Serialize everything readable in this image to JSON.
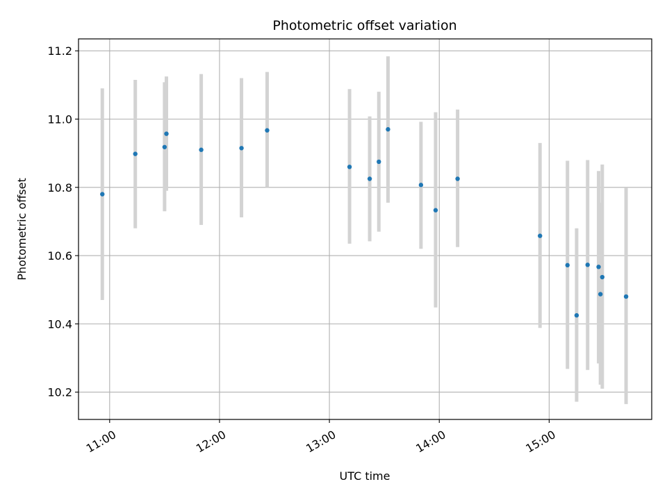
{
  "chart_data": {
    "type": "scatter",
    "title": "Photometric offset variation",
    "xlabel": "UTC time",
    "ylabel": "Photometric offset",
    "x_unit": "UTC clock time (hours)",
    "xlim": [
      "10:43",
      "15:56"
    ],
    "ylim": [
      10.12,
      11.235
    ],
    "grid": true,
    "xticks": [
      "11:00",
      "12:00",
      "13:00",
      "14:00",
      "15:00"
    ],
    "yticks": [
      "10.2",
      "10.4",
      "10.6",
      "10.8",
      "11.0",
      "11.2"
    ],
    "colors": {
      "point": "#1f77b4",
      "errorbar": "#d3d3d3",
      "grid": "#b0b0b0",
      "axes": "#000000"
    },
    "points": [
      {
        "x": "10:56",
        "y": 10.78,
        "ylow": 10.47,
        "yhigh": 11.09
      },
      {
        "x": "11:14",
        "y": 10.898,
        "ylow": 10.68,
        "yhigh": 11.115
      },
      {
        "x": "11:30",
        "y": 10.918,
        "ylow": 10.73,
        "yhigh": 11.108
      },
      {
        "x": "11:31",
        "y": 10.957,
        "ylow": 10.79,
        "yhigh": 11.125
      },
      {
        "x": "11:50",
        "y": 10.91,
        "ylow": 10.69,
        "yhigh": 11.132
      },
      {
        "x": "12:12",
        "y": 10.915,
        "ylow": 10.712,
        "yhigh": 11.12
      },
      {
        "x": "12:26",
        "y": 10.967,
        "ylow": 10.8,
        "yhigh": 11.138
      },
      {
        "x": "13:11",
        "y": 10.86,
        "ylow": 10.635,
        "yhigh": 11.088
      },
      {
        "x": "13:22",
        "y": 10.825,
        "ylow": 10.642,
        "yhigh": 11.008
      },
      {
        "x": "13:27",
        "y": 10.875,
        "ylow": 10.67,
        "yhigh": 11.08
      },
      {
        "x": "13:32",
        "y": 10.97,
        "ylow": 10.755,
        "yhigh": 11.184
      },
      {
        "x": "13:50",
        "y": 10.807,
        "ylow": 10.62,
        "yhigh": 10.992
      },
      {
        "x": "13:58",
        "y": 10.733,
        "ylow": 10.448,
        "yhigh": 11.02
      },
      {
        "x": "14:10",
        "y": 10.825,
        "ylow": 10.625,
        "yhigh": 11.028
      },
      {
        "x": "14:55",
        "y": 10.658,
        "ylow": 10.388,
        "yhigh": 10.93
      },
      {
        "x": "15:10",
        "y": 10.572,
        "ylow": 10.268,
        "yhigh": 10.878
      },
      {
        "x": "15:15",
        "y": 10.425,
        "ylow": 10.172,
        "yhigh": 10.68
      },
      {
        "x": "15:21",
        "y": 10.573,
        "ylow": 10.265,
        "yhigh": 10.88
      },
      {
        "x": "15:27",
        "y": 10.567,
        "ylow": 10.284,
        "yhigh": 10.848
      },
      {
        "x": "15:28",
        "y": 10.487,
        "ylow": 10.222,
        "yhigh": 10.755
      },
      {
        "x": "15:29",
        "y": 10.537,
        "ylow": 10.21,
        "yhigh": 10.867
      },
      {
        "x": "15:42",
        "y": 10.48,
        "ylow": 10.165,
        "yhigh": 10.798
      }
    ]
  }
}
